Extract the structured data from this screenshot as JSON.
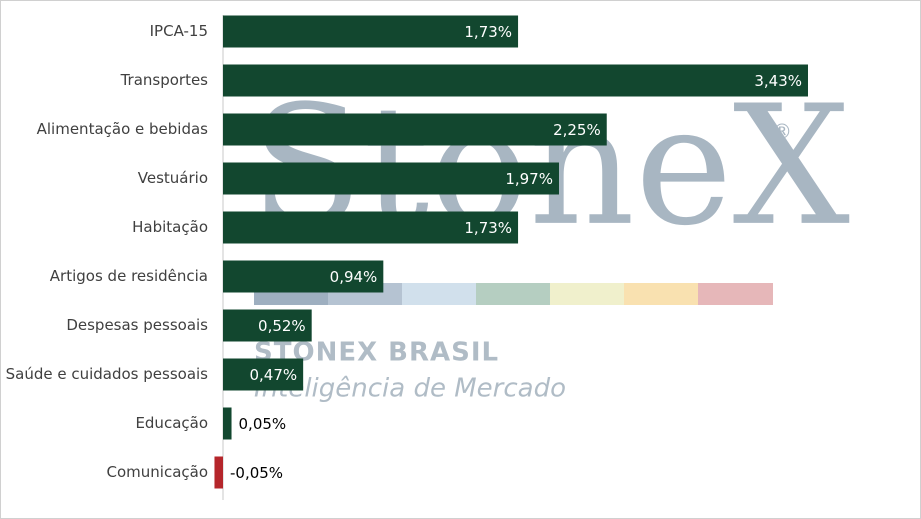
{
  "chart_data": {
    "type": "bar",
    "orientation": "horizontal",
    "categories": [
      "IPCA-15",
      "Transportes",
      "Alimentação e bebidas",
      "Vestuário",
      "Habitação",
      "Artigos de residência",
      "Despesas pessoais",
      "Saúde e cuidados pessoais",
      "Educação",
      "Comunicação"
    ],
    "values": [
      1.73,
      3.43,
      2.25,
      1.97,
      1.73,
      0.94,
      0.52,
      0.47,
      0.05,
      -0.05
    ],
    "value_labels": [
      "1,73%",
      "3,43%",
      "2,25%",
      "1,97%",
      "1,73%",
      "0,94%",
      "0,52%",
      "0,47%",
      "0,05%",
      "-0,05%"
    ],
    "color": "#12472f",
    "negative_color": "#b5262b"
  },
  "watermark": {
    "logo": "StoneX",
    "registered": "®",
    "brand": "STONEX BRASIL",
    "tagline": "Inteligência de Mercado"
  }
}
